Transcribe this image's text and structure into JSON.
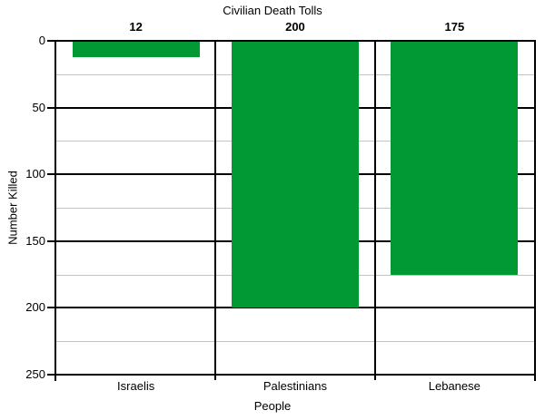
{
  "chart_data": {
    "type": "bar",
    "title": "Civilian Death Tolls",
    "xlabel": "People",
    "ylabel": "Number Killed",
    "categories": [
      "Israelis",
      "Palestinians",
      "Lebanese"
    ],
    "values": [
      12,
      200,
      175
    ],
    "bar_value_labels": [
      "12",
      "200",
      "175"
    ],
    "ylim": [
      0,
      250
    ],
    "y_inverted": true,
    "y_major_ticks": [
      0,
      50,
      100,
      150,
      200,
      250
    ],
    "y_minor_ticks": [
      25,
      75,
      125,
      175,
      225
    ],
    "grid": "major-black-minor-gray",
    "legend_position": "none",
    "bar_color": "#009933",
    "major_grid_color": "#000000",
    "minor_grid_color": "#c3c3c3",
    "axis_color": "#000000",
    "background_color": "#ffffff"
  }
}
